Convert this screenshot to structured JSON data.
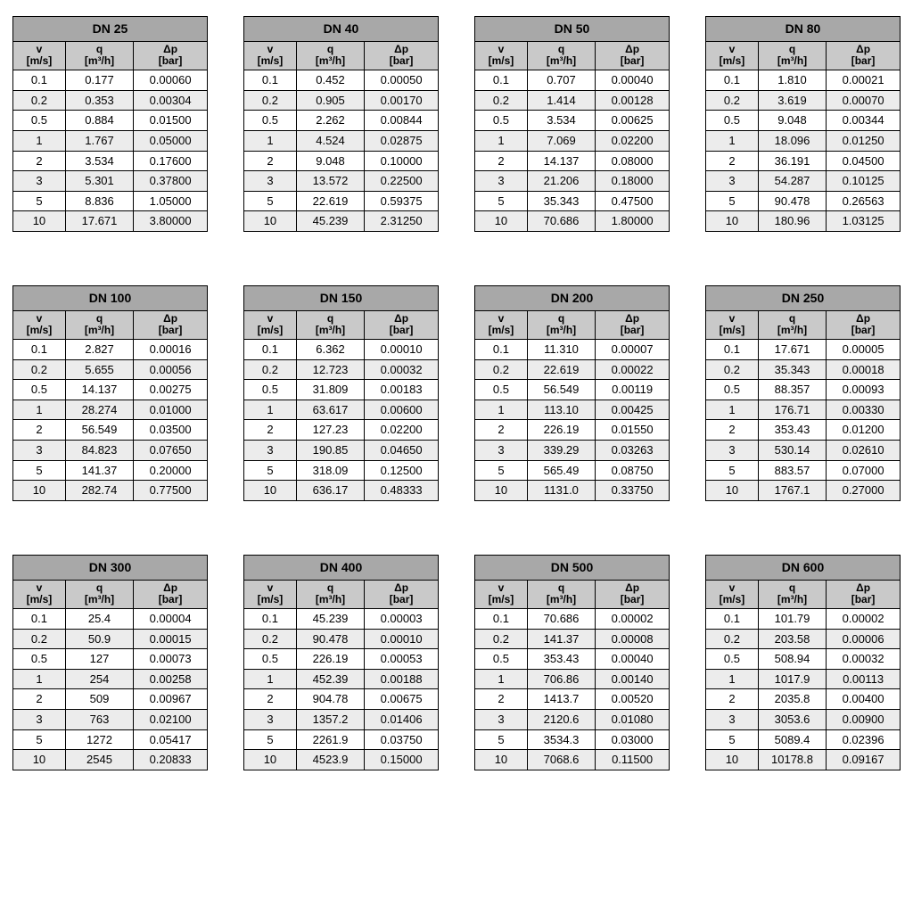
{
  "headers": {
    "v_sym": "v",
    "v_unit": "[m/s]",
    "q_sym": "q",
    "q_unit": "[m³/h]",
    "dp_sym": "Δp",
    "dp_unit": "[bar]"
  },
  "velocities": [
    "0.1",
    "0.2",
    "0.5",
    "1",
    "2",
    "3",
    "5",
    "10"
  ],
  "tables": [
    {
      "title": "DN 25",
      "q": [
        "0.177",
        "0.353",
        "0.884",
        "1.767",
        "3.534",
        "5.301",
        "8.836",
        "17.671"
      ],
      "dp": [
        "0.00060",
        "0.00304",
        "0.01500",
        "0.05000",
        "0.17600",
        "0.37800",
        "1.05000",
        "3.80000"
      ]
    },
    {
      "title": "DN 40",
      "q": [
        "0.452",
        "0.905",
        "2.262",
        "4.524",
        "9.048",
        "13.572",
        "22.619",
        "45.239"
      ],
      "dp": [
        "0.00050",
        "0.00170",
        "0.00844",
        "0.02875",
        "0.10000",
        "0.22500",
        "0.59375",
        "2.31250"
      ]
    },
    {
      "title": "DN 50",
      "q": [
        "0.707",
        "1.414",
        "3.534",
        "7.069",
        "14.137",
        "21.206",
        "35.343",
        "70.686"
      ],
      "dp": [
        "0.00040",
        "0.00128",
        "0.00625",
        "0.02200",
        "0.08000",
        "0.18000",
        "0.47500",
        "1.80000"
      ]
    },
    {
      "title": "DN 80",
      "q": [
        "1.810",
        "3.619",
        "9.048",
        "18.096",
        "36.191",
        "54.287",
        "90.478",
        "180.96"
      ],
      "dp": [
        "0.00021",
        "0.00070",
        "0.00344",
        "0.01250",
        "0.04500",
        "0.10125",
        "0.26563",
        "1.03125"
      ]
    },
    {
      "title": "DN 100",
      "q": [
        "2.827",
        "5.655",
        "14.137",
        "28.274",
        "56.549",
        "84.823",
        "141.37",
        "282.74"
      ],
      "dp": [
        "0.00016",
        "0.00056",
        "0.00275",
        "0.01000",
        "0.03500",
        "0.07650",
        "0.20000",
        "0.77500"
      ]
    },
    {
      "title": "DN 150",
      "q": [
        "6.362",
        "12.723",
        "31.809",
        "63.617",
        "127.23",
        "190.85",
        "318.09",
        "636.17"
      ],
      "dp": [
        "0.00010",
        "0.00032",
        "0.00183",
        "0.00600",
        "0.02200",
        "0.04650",
        "0.12500",
        "0.48333"
      ]
    },
    {
      "title": "DN 200",
      "q": [
        "11.310",
        "22.619",
        "56.549",
        "113.10",
        "226.19",
        "339.29",
        "565.49",
        "1131.0"
      ],
      "dp": [
        "0.00007",
        "0.00022",
        "0.00119",
        "0.00425",
        "0.01550",
        "0.03263",
        "0.08750",
        "0.33750"
      ]
    },
    {
      "title": "DN 250",
      "q": [
        "17.671",
        "35.343",
        "88.357",
        "176.71",
        "353.43",
        "530.14",
        "883.57",
        "1767.1"
      ],
      "dp": [
        "0.00005",
        "0.00018",
        "0.00093",
        "0.00330",
        "0.01200",
        "0.02610",
        "0.07000",
        "0.27000"
      ]
    },
    {
      "title": "DN 300",
      "q": [
        "25.4",
        "50.9",
        "127",
        "254",
        "509",
        "763",
        "1272",
        "2545"
      ],
      "dp": [
        "0.00004",
        "0.00015",
        "0.00073",
        "0.00258",
        "0.00967",
        "0.02100",
        "0.05417",
        "0.20833"
      ]
    },
    {
      "title": "DN 400",
      "q": [
        "45.239",
        "90.478",
        "226.19",
        "452.39",
        "904.78",
        "1357.2",
        "2261.9",
        "4523.9"
      ],
      "dp": [
        "0.00003",
        "0.00010",
        "0.00053",
        "0.00188",
        "0.00675",
        "0.01406",
        "0.03750",
        "0.15000"
      ]
    },
    {
      "title": "DN 500",
      "q": [
        "70.686",
        "141.37",
        "353.43",
        "706.86",
        "1413.7",
        "2120.6",
        "3534.3",
        "7068.6"
      ],
      "dp": [
        "0.00002",
        "0.00008",
        "0.00040",
        "0.00140",
        "0.00520",
        "0.01080",
        "0.03000",
        "0.11500"
      ]
    },
    {
      "title": "DN 600",
      "q": [
        "101.79",
        "203.58",
        "508.94",
        "1017.9",
        "2035.8",
        "3053.6",
        "5089.4",
        "10178.8"
      ],
      "dp": [
        "0.00002",
        "0.00006",
        "0.00032",
        "0.00113",
        "0.00400",
        "0.00900",
        "0.02396",
        "0.09167"
      ]
    }
  ]
}
